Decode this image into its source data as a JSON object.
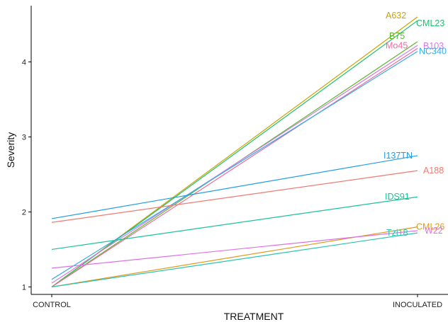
{
  "chart_data": {
    "type": "line",
    "title": "",
    "xlabel": "TREATMENT",
    "ylabel": "Severity",
    "categories": [
      "CONTROL",
      "INOCULATED"
    ],
    "yticks": [
      1,
      2,
      3,
      4
    ],
    "ylim": [
      0.9,
      4.75
    ],
    "grid": false,
    "legend": "none",
    "series": [
      {
        "name": "A632",
        "values": [
          1.0,
          4.6
        ],
        "color": "#c9a400"
      },
      {
        "name": "CML23",
        "values": [
          1.0,
          4.55
        ],
        "color": "#1fbf6e"
      },
      {
        "name": "B75",
        "values": [
          1.0,
          4.27
        ],
        "color": "#58b82a"
      },
      {
        "name": "B103",
        "values": [
          1.05,
          4.22
        ],
        "color": "#d77ae6"
      },
      {
        "name": "Mo45",
        "values": [
          1.0,
          4.18
        ],
        "color": "#f06aa0"
      },
      {
        "name": "NC340",
        "values": [
          1.1,
          4.14
        ],
        "color": "#33aee6"
      },
      {
        "name": "I137TN",
        "values": [
          1.91,
          2.75
        ],
        "color": "#1f9ee6"
      },
      {
        "name": "A188",
        "values": [
          1.86,
          2.55
        ],
        "color": "#f07a70"
      },
      {
        "name": "IDS91",
        "values": [
          1.5,
          2.2
        ],
        "color": "#18c49a"
      },
      {
        "name": "CML26",
        "values": [
          1.0,
          1.8
        ],
        "color": "#e39a1a"
      },
      {
        "name": "W22",
        "values": [
          1.25,
          1.75
        ],
        "color": "#e070e6"
      },
      {
        "name": "Tzi18",
        "values": [
          1.0,
          1.72
        ],
        "color": "#28c4b0"
      }
    ]
  }
}
